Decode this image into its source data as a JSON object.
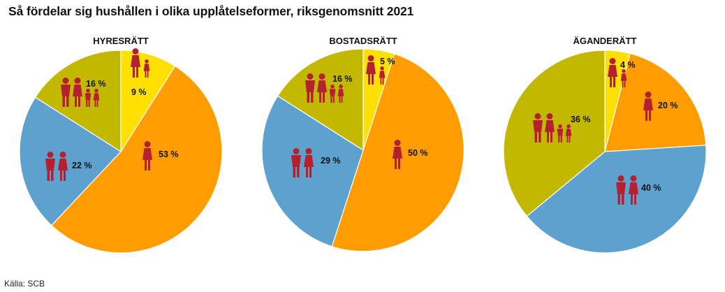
{
  "title": "Så fördelar sig hushållen i olika upplåtelseformer, riksgenomsnitt 2021",
  "source": "Källa: SCB",
  "colors": {
    "yellow": "#FFE000",
    "orange": "#FF9D00",
    "blue": "#5DA1CE",
    "olive": "#C3B800",
    "figure": "#B5202E"
  },
  "categories": [
    {
      "key": "single_with_children",
      "icon": "adult-with-child-icon",
      "color": "#FFE000"
    },
    {
      "key": "single_without_children",
      "icon": "single-adult-icon",
      "color": "#FF9D00"
    },
    {
      "key": "couple_without_children",
      "icon": "couple-icon",
      "color": "#5DA1CE"
    },
    {
      "key": "couple_with_children",
      "icon": "family-icon",
      "color": "#C3B800"
    }
  ],
  "chart_data": [
    {
      "type": "pie",
      "title": "HYRESRÄTT",
      "values": [
        9,
        53,
        22,
        16
      ],
      "labels": [
        "9 %",
        "53 %",
        "22 %",
        "16 %"
      ]
    },
    {
      "type": "pie",
      "title": "BOSTADSRÄTT",
      "values": [
        5,
        50,
        29,
        16
      ],
      "labels": [
        "5 %",
        "50 %",
        "29 %",
        "16 %"
      ]
    },
    {
      "type": "pie",
      "title": "ÄGANDERÄTT",
      "values": [
        4,
        20,
        40,
        36
      ],
      "labels": [
        "4 %",
        "20 %",
        "40 %",
        "36 %"
      ]
    }
  ]
}
